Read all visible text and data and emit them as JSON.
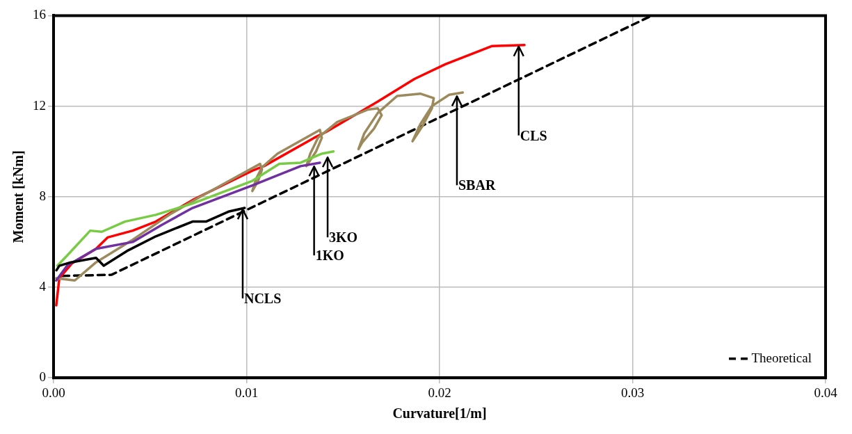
{
  "chart_data": {
    "type": "line",
    "xlabel": "Curvature[1/m]",
    "ylabel": "Moment [kNm]",
    "xlim": [
      0,
      0.04
    ],
    "ylim": [
      0,
      16
    ],
    "xticks": [
      {
        "value": 0,
        "label": "0.00"
      },
      {
        "value": 0.01,
        "label": "0.01"
      },
      {
        "value": 0.02,
        "label": "0.02"
      },
      {
        "value": 0.03,
        "label": "0.03"
      },
      {
        "value": 0.04,
        "label": "0.04"
      }
    ],
    "yticks": [
      0,
      4,
      8,
      12,
      16
    ],
    "grid": true,
    "legend": "bottom right",
    "marker": "none",
    "series": [
      {
        "color": "#000000",
        "x": [
          0.00015,
          0.0003,
          0.0009,
          0.0022,
          0.0026,
          0.0038,
          0.0053,
          0.0072,
          0.0079,
          0.0091,
          0.0099
        ],
        "values": [
          4.75,
          4.95,
          5.1,
          5.3,
          4.95,
          5.6,
          6.25,
          6.9,
          6.9,
          7.35,
          7.5
        ]
      },
      {
        "color": "#7030a0",
        "x": [
          0.00014,
          0.0007,
          0.0022,
          0.0041,
          0.0056,
          0.0072,
          0.0103,
          0.0128,
          0.0138
        ],
        "values": [
          4.3,
          4.95,
          5.7,
          6.0,
          6.75,
          7.5,
          8.5,
          9.35,
          9.5
        ]
      },
      {
        "color": "#77cc44",
        "x": [
          0.0002,
          0.0007,
          0.0019,
          0.0025,
          0.0037,
          0.0053,
          0.0072,
          0.0103,
          0.0117,
          0.0128,
          0.0139,
          0.0145
        ],
        "values": [
          4.95,
          5.4,
          6.5,
          6.45,
          6.9,
          7.2,
          7.7,
          8.7,
          9.45,
          9.5,
          9.9,
          10.0
        ]
      },
      {
        "color": "#9c8a5c",
        "x": [
          0.00014,
          0.0011,
          0.0022,
          0.0041,
          0.006,
          0.0075,
          0.0091,
          0.0107,
          0.0108,
          0.0106,
          0.0103,
          0.0105,
          0.0108,
          0.0116,
          0.0138,
          0.0139,
          0.0136,
          0.0131,
          0.0133,
          0.0137,
          0.0147,
          0.0163,
          0.0168,
          0.017,
          0.0166,
          0.016,
          0.0158,
          0.0161,
          0.0168,
          0.0178,
          0.019,
          0.0197,
          0.0196,
          0.0191,
          0.0186,
          0.019,
          0.0196,
          0.0205,
          0.0212
        ],
        "values": [
          4.4,
          4.3,
          5.1,
          6.1,
          7.2,
          7.95,
          8.7,
          9.45,
          9.2,
          8.7,
          8.25,
          8.8,
          9.3,
          9.9,
          10.95,
          10.6,
          10.0,
          9.35,
          9.9,
          10.6,
          11.3,
          11.85,
          11.9,
          11.6,
          11.0,
          10.4,
          10.1,
          10.8,
          11.7,
          12.45,
          12.55,
          12.35,
          11.9,
          11.1,
          10.45,
          11.2,
          12.0,
          12.5,
          12.6
        ]
      },
      {
        "color": "#ff0000",
        "x": [
          0.00014,
          0.0003,
          0.00095,
          0.0022,
          0.0028,
          0.0041,
          0.0053,
          0.0072,
          0.0103,
          0.0109,
          0.0135,
          0.0141,
          0.0168,
          0.0187,
          0.0203,
          0.0227,
          0.0244
        ],
        "values": [
          3.2,
          4.4,
          5.05,
          5.7,
          6.2,
          6.5,
          6.9,
          7.85,
          9.15,
          9.35,
          10.6,
          10.85,
          12.2,
          13.2,
          13.85,
          14.65,
          14.7
        ]
      },
      {
        "name": "Theoretical",
        "color": "#000000",
        "line_style": "dashed",
        "x": [
          0.00045,
          0.003,
          0.031
        ],
        "values": [
          4.5,
          4.55,
          16
        ]
      }
    ],
    "annotations": [
      {
        "text": "NCLS",
        "x": 0.0098,
        "y": 7.5
      },
      {
        "text": "1KO",
        "x": 0.0135,
        "y": 9.4
      },
      {
        "text": "3KO",
        "x": 0.0142,
        "y": 9.8
      },
      {
        "text": "SBAR",
        "x": 0.0209,
        "y": 12.5
      },
      {
        "text": "CLS",
        "x": 0.0241,
        "y": 14.7
      }
    ]
  }
}
